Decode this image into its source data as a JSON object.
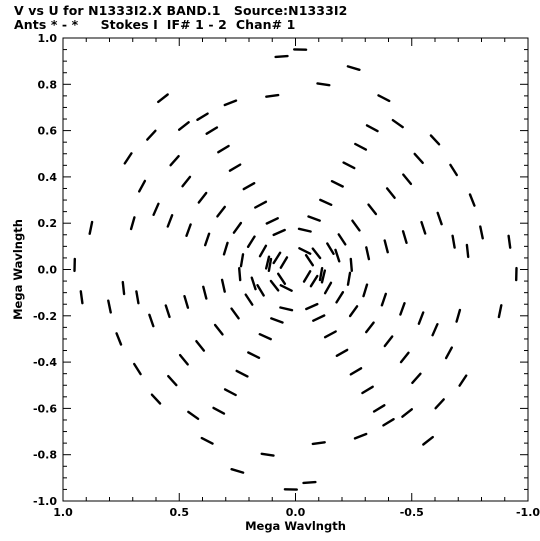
{
  "window": {
    "title": "V vs U for N1333I2.X BAND.1   Source:N1333I2",
    "subtitle": "Ants * - *     Stokes I  IF# 1 - 2  Chan# 1"
  },
  "chart_data": {
    "type": "scatter",
    "title": "V vs U for N1333I2.X BAND.1   Source:N1333I2",
    "subtitle": "Ants * - *     Stokes I  IF# 1 - 2  Chan# 1",
    "xlabel": "Mega Wavlngth",
    "ylabel": "Mega Wavlngth",
    "xlim": [
      1.0,
      -1.0
    ],
    "ylim": [
      -1.0,
      1.0
    ],
    "x_reversed": true,
    "grid": false,
    "legend": "none",
    "x_ticks": [
      1.0,
      0.5,
      0.0,
      -0.5,
      -1.0
    ],
    "x_tick_labels": [
      "1.0",
      "0.5",
      "0.0",
      "-0.5",
      "-1.0"
    ],
    "y_ticks": [
      -1.0,
      -0.8,
      -0.6,
      -0.4,
      -0.2,
      0.0,
      0.2,
      0.4,
      0.6,
      0.8,
      1.0
    ],
    "y_tick_labels": [
      "-1.0",
      "-0.8",
      "-0.6",
      "-0.4",
      "-0.2",
      "0.0",
      "0.2",
      "0.4",
      "0.6",
      "0.8",
      "1.0"
    ],
    "series": [
      {
        "description": "uv-track arcs (u, v in mega-wavelengths); conjugate points (-u,-v) also plotted",
        "points": [
          [
            0.05,
            0.03
          ],
          [
            0.08,
            0.05
          ],
          [
            -0.06,
            0.04
          ],
          [
            -0.09,
            0.07
          ],
          [
            0.04,
            -0.08
          ],
          [
            0.11,
            0.02
          ],
          [
            -0.12,
            -0.03
          ],
          [
            0.14,
            0.08
          ],
          [
            -0.15,
            0.09
          ],
          [
            0.07,
            0.16
          ],
          [
            -0.04,
            0.17
          ],
          [
            0.18,
            -0.06
          ],
          [
            0.19,
            0.12
          ],
          [
            -0.2,
            0.13
          ],
          [
            0.1,
            0.21
          ],
          [
            -0.08,
            0.22
          ],
          [
            0.23,
            0.04
          ],
          [
            -0.24,
            0.02
          ],
          [
            0.25,
            0.18
          ],
          [
            -0.26,
            0.19
          ],
          [
            0.15,
            0.28
          ],
          [
            -0.13,
            0.29
          ],
          [
            0.3,
            0.09
          ],
          [
            -0.31,
            0.07
          ],
          [
            0.32,
            0.25
          ],
          [
            -0.33,
            0.26
          ],
          [
            0.2,
            0.36
          ],
          [
            -0.18,
            0.37
          ],
          [
            0.38,
            0.13
          ],
          [
            -0.39,
            0.1
          ],
          [
            0.4,
            0.31
          ],
          [
            -0.41,
            0.33
          ],
          [
            0.26,
            0.44
          ],
          [
            -0.23,
            0.45
          ],
          [
            0.46,
            0.17
          ],
          [
            -0.47,
            0.14
          ],
          [
            0.47,
            0.38
          ],
          [
            -0.48,
            0.39
          ],
          [
            0.31,
            0.52
          ],
          [
            -0.28,
            0.53
          ],
          [
            0.54,
            0.21
          ],
          [
            -0.55,
            0.18
          ],
          [
            0.52,
            0.47
          ],
          [
            -0.53,
            0.48
          ],
          [
            0.36,
            0.6
          ],
          [
            -0.33,
            0.61
          ],
          [
            0.6,
            0.26
          ],
          [
            -0.62,
            0.22
          ],
          [
            0.48,
            0.62
          ],
          [
            -0.44,
            0.63
          ],
          [
            0.28,
            0.72
          ],
          [
            0.1,
            0.75
          ],
          [
            -0.12,
            0.8
          ],
          [
            -0.25,
            0.87
          ],
          [
            0.66,
            0.36
          ],
          [
            -0.68,
            0.12
          ],
          [
            -0.74,
            0.08
          ],
          [
            -0.8,
            0.16
          ],
          [
            -0.92,
            0.12
          ],
          [
            0.72,
            0.48
          ],
          [
            0.88,
            0.18
          ],
          [
            0.95,
            0.02
          ],
          [
            0.7,
            0.2
          ],
          [
            0.06,
            0.92
          ],
          [
            -0.02,
            0.95
          ],
          [
            0.57,
            0.74
          ],
          [
            -0.6,
            0.56
          ],
          [
            -0.68,
            0.43
          ],
          [
            -0.76,
            0.3
          ],
          [
            0.62,
            0.58
          ],
          [
            0.4,
            0.66
          ],
          [
            -0.38,
            0.74
          ]
        ]
      }
    ],
    "marker": "dash",
    "color": "#000000"
  }
}
